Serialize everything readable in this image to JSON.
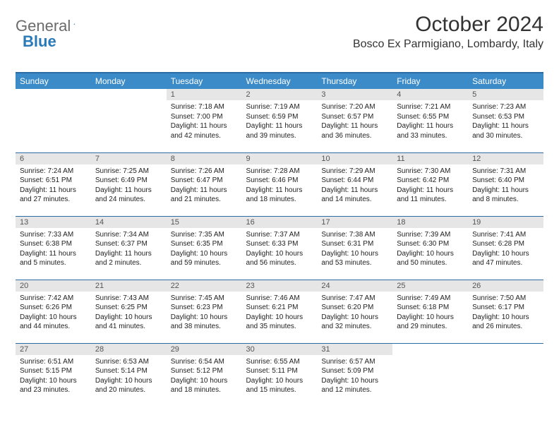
{
  "logo": {
    "word1": "General",
    "word2": "Blue"
  },
  "title": "October 2024",
  "location": "Bosco Ex Parmigiano, Lombardy, Italy",
  "colors": {
    "header_bg": "#3b8bc8",
    "header_border": "#2a6ca3",
    "daynum_bg": "#e6e6e6",
    "logo_gray": "#6b6b6b",
    "logo_blue": "#2a7ab8"
  },
  "weekdays": [
    "Sunday",
    "Monday",
    "Tuesday",
    "Wednesday",
    "Thursday",
    "Friday",
    "Saturday"
  ],
  "weeks": [
    [
      null,
      null,
      {
        "n": "1",
        "sr": "Sunrise: 7:18 AM",
        "ss": "Sunset: 7:00 PM",
        "dl": "Daylight: 11 hours and 42 minutes."
      },
      {
        "n": "2",
        "sr": "Sunrise: 7:19 AM",
        "ss": "Sunset: 6:59 PM",
        "dl": "Daylight: 11 hours and 39 minutes."
      },
      {
        "n": "3",
        "sr": "Sunrise: 7:20 AM",
        "ss": "Sunset: 6:57 PM",
        "dl": "Daylight: 11 hours and 36 minutes."
      },
      {
        "n": "4",
        "sr": "Sunrise: 7:21 AM",
        "ss": "Sunset: 6:55 PM",
        "dl": "Daylight: 11 hours and 33 minutes."
      },
      {
        "n": "5",
        "sr": "Sunrise: 7:23 AM",
        "ss": "Sunset: 6:53 PM",
        "dl": "Daylight: 11 hours and 30 minutes."
      }
    ],
    [
      {
        "n": "6",
        "sr": "Sunrise: 7:24 AM",
        "ss": "Sunset: 6:51 PM",
        "dl": "Daylight: 11 hours and 27 minutes."
      },
      {
        "n": "7",
        "sr": "Sunrise: 7:25 AM",
        "ss": "Sunset: 6:49 PM",
        "dl": "Daylight: 11 hours and 24 minutes."
      },
      {
        "n": "8",
        "sr": "Sunrise: 7:26 AM",
        "ss": "Sunset: 6:47 PM",
        "dl": "Daylight: 11 hours and 21 minutes."
      },
      {
        "n": "9",
        "sr": "Sunrise: 7:28 AM",
        "ss": "Sunset: 6:46 PM",
        "dl": "Daylight: 11 hours and 18 minutes."
      },
      {
        "n": "10",
        "sr": "Sunrise: 7:29 AM",
        "ss": "Sunset: 6:44 PM",
        "dl": "Daylight: 11 hours and 14 minutes."
      },
      {
        "n": "11",
        "sr": "Sunrise: 7:30 AM",
        "ss": "Sunset: 6:42 PM",
        "dl": "Daylight: 11 hours and 11 minutes."
      },
      {
        "n": "12",
        "sr": "Sunrise: 7:31 AM",
        "ss": "Sunset: 6:40 PM",
        "dl": "Daylight: 11 hours and 8 minutes."
      }
    ],
    [
      {
        "n": "13",
        "sr": "Sunrise: 7:33 AM",
        "ss": "Sunset: 6:38 PM",
        "dl": "Daylight: 11 hours and 5 minutes."
      },
      {
        "n": "14",
        "sr": "Sunrise: 7:34 AM",
        "ss": "Sunset: 6:37 PM",
        "dl": "Daylight: 11 hours and 2 minutes."
      },
      {
        "n": "15",
        "sr": "Sunrise: 7:35 AM",
        "ss": "Sunset: 6:35 PM",
        "dl": "Daylight: 10 hours and 59 minutes."
      },
      {
        "n": "16",
        "sr": "Sunrise: 7:37 AM",
        "ss": "Sunset: 6:33 PM",
        "dl": "Daylight: 10 hours and 56 minutes."
      },
      {
        "n": "17",
        "sr": "Sunrise: 7:38 AM",
        "ss": "Sunset: 6:31 PM",
        "dl": "Daylight: 10 hours and 53 minutes."
      },
      {
        "n": "18",
        "sr": "Sunrise: 7:39 AM",
        "ss": "Sunset: 6:30 PM",
        "dl": "Daylight: 10 hours and 50 minutes."
      },
      {
        "n": "19",
        "sr": "Sunrise: 7:41 AM",
        "ss": "Sunset: 6:28 PM",
        "dl": "Daylight: 10 hours and 47 minutes."
      }
    ],
    [
      {
        "n": "20",
        "sr": "Sunrise: 7:42 AM",
        "ss": "Sunset: 6:26 PM",
        "dl": "Daylight: 10 hours and 44 minutes."
      },
      {
        "n": "21",
        "sr": "Sunrise: 7:43 AM",
        "ss": "Sunset: 6:25 PM",
        "dl": "Daylight: 10 hours and 41 minutes."
      },
      {
        "n": "22",
        "sr": "Sunrise: 7:45 AM",
        "ss": "Sunset: 6:23 PM",
        "dl": "Daylight: 10 hours and 38 minutes."
      },
      {
        "n": "23",
        "sr": "Sunrise: 7:46 AM",
        "ss": "Sunset: 6:21 PM",
        "dl": "Daylight: 10 hours and 35 minutes."
      },
      {
        "n": "24",
        "sr": "Sunrise: 7:47 AM",
        "ss": "Sunset: 6:20 PM",
        "dl": "Daylight: 10 hours and 32 minutes."
      },
      {
        "n": "25",
        "sr": "Sunrise: 7:49 AM",
        "ss": "Sunset: 6:18 PM",
        "dl": "Daylight: 10 hours and 29 minutes."
      },
      {
        "n": "26",
        "sr": "Sunrise: 7:50 AM",
        "ss": "Sunset: 6:17 PM",
        "dl": "Daylight: 10 hours and 26 minutes."
      }
    ],
    [
      {
        "n": "27",
        "sr": "Sunrise: 6:51 AM",
        "ss": "Sunset: 5:15 PM",
        "dl": "Daylight: 10 hours and 23 minutes."
      },
      {
        "n": "28",
        "sr": "Sunrise: 6:53 AM",
        "ss": "Sunset: 5:14 PM",
        "dl": "Daylight: 10 hours and 20 minutes."
      },
      {
        "n": "29",
        "sr": "Sunrise: 6:54 AM",
        "ss": "Sunset: 5:12 PM",
        "dl": "Daylight: 10 hours and 18 minutes."
      },
      {
        "n": "30",
        "sr": "Sunrise: 6:55 AM",
        "ss": "Sunset: 5:11 PM",
        "dl": "Daylight: 10 hours and 15 minutes."
      },
      {
        "n": "31",
        "sr": "Sunrise: 6:57 AM",
        "ss": "Sunset: 5:09 PM",
        "dl": "Daylight: 10 hours and 12 minutes."
      },
      null,
      null
    ]
  ]
}
